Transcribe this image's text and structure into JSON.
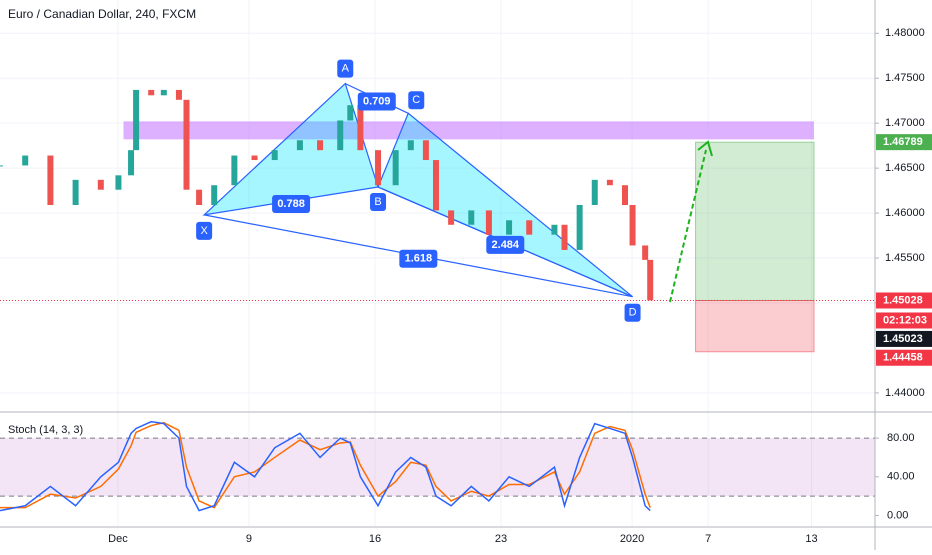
{
  "chart_data": {
    "type": "candlestick",
    "title": "Euro / Canadian Dollar, 240, FXCM",
    "x": [
      0,
      1,
      2,
      3,
      4,
      4.7,
      5.2,
      5.4,
      6,
      6.5,
      7.1,
      7.4,
      7.9,
      8.5,
      9.3,
      10.1,
      10.9,
      11.9,
      12.7,
      13.5,
      13.9,
      14.3,
      15,
      15.7,
      16.3,
      16.9,
      17.3,
      17.9,
      18.7,
      19.4,
      20.2,
      21,
      22,
      22.4,
      23,
      23.6,
      24.2,
      24.8,
      25.1,
      25.6,
      25.8
    ],
    "close": [
      1.4653,
      1.4664,
      1.4609,
      1.4637,
      1.4626,
      1.4642,
      1.467,
      1.4737,
      1.4731,
      1.4737,
      1.4726,
      1.4626,
      1.4609,
      1.4631,
      1.4664,
      1.4659,
      1.467,
      1.4681,
      1.467,
      1.4703,
      1.472,
      1.467,
      1.4631,
      1.467,
      1.4681,
      1.4659,
      1.4603,
      1.4587,
      1.4603,
      1.4576,
      1.4592,
      1.4576,
      1.4587,
      1.4559,
      1.4609,
      1.4637,
      1.4631,
      1.4609,
      1.4564,
      1.4548,
      1.4503
    ],
    "up_color": "#26a69a",
    "down_color": "#ef5350",
    "xlim": [
      0,
      34.72
    ],
    "xticks": [
      {
        "value": 4.68,
        "label": "Dec"
      },
      {
        "value": 9.88,
        "label": "9"
      },
      {
        "value": 14.88,
        "label": "16"
      },
      {
        "value": 19.88,
        "label": "23"
      },
      {
        "value": 25.08,
        "label": "2020"
      },
      {
        "value": 28.1,
        "label": "7"
      },
      {
        "value": 32.2,
        "label": "13"
      }
    ],
    "ylim": [
      1.4381,
      1.4837
    ],
    "yticks": [
      {
        "value": 1.48,
        "label": "1.48000"
      },
      {
        "value": 1.475,
        "label": "1.47500"
      },
      {
        "value": 1.47,
        "label": "1.47000"
      },
      {
        "value": 1.465,
        "label": "1.46500"
      },
      {
        "value": 1.46,
        "label": "1.46000"
      },
      {
        "value": 1.455,
        "label": "1.45500"
      },
      {
        "value": 1.45,
        "label": "1.45000"
      },
      {
        "value": 1.44,
        "label": "1.44000"
      }
    ],
    "zone": {
      "ylim": [
        1.4682,
        1.4702
      ],
      "xlim": [
        4.9,
        32.3
      ],
      "color": "#c77dff"
    },
    "pattern": {
      "points": [
        {
          "label": "X",
          "x": 8.1,
          "y": 1.4598
        },
        {
          "label": "A",
          "x": 13.7,
          "y": 1.4744
        },
        {
          "label": "B",
          "x": 15.0,
          "y": 1.4629
        },
        {
          "label": "C",
          "x": 16.2,
          "y": 1.4711
        },
        {
          "label": "D",
          "x": 25.1,
          "y": 1.4507
        }
      ],
      "ratios": [
        "0.709",
        "0.788",
        "1.618",
        "2.484"
      ],
      "color": "#2962ff"
    },
    "position": {
      "entry": 1.45028,
      "target": 1.46789,
      "stop": 1.44458,
      "xlim": [
        27.6,
        32.3
      ]
    },
    "last_price": 1.45023,
    "countdown": "02:12:03",
    "stoch": {
      "title": "Stoch (14, 3, 3)",
      "k": [
        5,
        10,
        30,
        10,
        40,
        55,
        85,
        90,
        97,
        95,
        80,
        30,
        5,
        10,
        55,
        40,
        70,
        85,
        60,
        80,
        75,
        40,
        10,
        45,
        60,
        50,
        20,
        10,
        30,
        15,
        40,
        30,
        50,
        10,
        60,
        95,
        90,
        85,
        60,
        10,
        5
      ],
      "d": [
        8,
        8,
        22,
        18,
        30,
        48,
        72,
        86,
        93,
        96,
        88,
        50,
        15,
        8,
        40,
        45,
        60,
        78,
        68,
        75,
        76,
        52,
        20,
        35,
        55,
        52,
        30,
        15,
        25,
        20,
        32,
        32,
        45,
        22,
        45,
        85,
        92,
        88,
        68,
        22,
        8
      ],
      "k_color": "#2962ff",
      "d_color": "#ff6d00",
      "ylim": [
        -12,
        106
      ],
      "yticks": [
        {
          "value": 0,
          "label": "0.00"
        },
        {
          "value": 40,
          "label": "40.00"
        },
        {
          "value": 80,
          "label": "80.00"
        }
      ],
      "band": [
        20,
        80
      ]
    }
  }
}
